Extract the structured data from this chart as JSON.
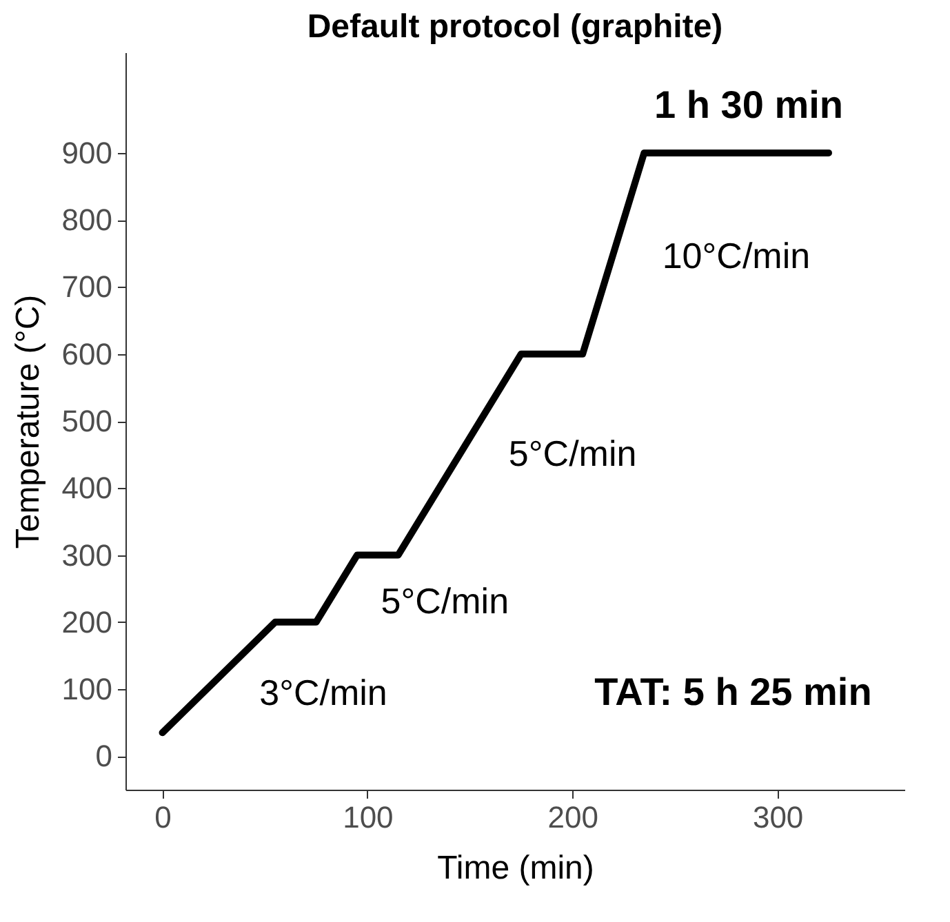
{
  "chart_data": {
    "type": "line",
    "title": "Default protocol (graphite)",
    "xlabel": "Time (min)",
    "ylabel": "Temperature (°C)",
    "x": [
      0,
      55,
      75,
      95,
      115,
      175,
      205,
      235,
      325
    ],
    "series": [
      {
        "color": "#000000",
        "values": [
          35,
          200,
          200,
          300,
          300,
          600,
          600,
          900,
          900
        ]
      }
    ],
    "xlim": [
      -18,
      362
    ],
    "xticks": [
      0,
      100,
      200,
      300
    ],
    "ylim": [
      -50,
      1050
    ],
    "yticks": [
      0,
      100,
      200,
      300,
      400,
      500,
      600,
      700,
      800,
      900
    ],
    "grid": false,
    "marker": "none",
    "line_style": "solid",
    "annotations": [
      "1 h 30 min",
      "10°C/min",
      "5°C/min",
      "5°C/min",
      "3°C/min",
      "TAT: 5 h 25 min"
    ]
  }
}
